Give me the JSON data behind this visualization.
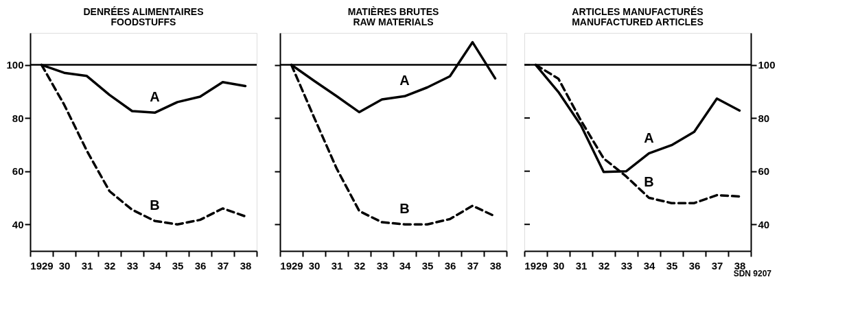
{
  "chart_data": [
    {
      "type": "line",
      "title": "DENRÉES ALIMENTAIRES",
      "subtitle": "FOODSTUFFS",
      "categories": [
        "1929",
        "30",
        "31",
        "32",
        "33",
        "34",
        "35",
        "36",
        "37",
        "38"
      ],
      "series": [
        {
          "name": "A",
          "color": "#000000",
          "line_style": "solid",
          "values": [
            100,
            97,
            95.8,
            88.7,
            82.6,
            82,
            86,
            88,
            93.5,
            92
          ]
        },
        {
          "name": "B",
          "color": "#000000",
          "line_style": "dashed",
          "values": [
            100,
            85,
            67.7,
            52.5,
            45.5,
            41.3,
            40,
            41.7,
            46,
            43
          ]
        }
      ],
      "ylim": [
        30,
        112
      ],
      "yticks": [
        40,
        60,
        80,
        100
      ],
      "grid": false,
      "ref_lines": [
        {
          "axis": "y",
          "value": 100,
          "color": "#000000"
        }
      ]
    },
    {
      "type": "line",
      "title": "MATIÈRES BRUTES",
      "subtitle": "RAW MATERIALS",
      "categories": [
        "1929",
        "30",
        "31",
        "32",
        "33",
        "34",
        "35",
        "36",
        "37",
        "38"
      ],
      "series": [
        {
          "name": "A",
          "color": "#000000",
          "line_style": "solid",
          "values": [
            100,
            94,
            88.2,
            82.2,
            87,
            88.2,
            91.5,
            95.7,
            108.5,
            94.9
          ]
        },
        {
          "name": "B",
          "color": "#000000",
          "line_style": "dashed",
          "values": [
            100,
            80.3,
            61,
            45,
            40.8,
            40,
            40,
            42,
            47,
            43
          ]
        }
      ],
      "ylim": [
        30,
        112
      ],
      "yticks": [
        40,
        60,
        80,
        100
      ],
      "grid": false,
      "tick_labels": "x",
      "ref_lines": [
        {
          "axis": "y",
          "value": 100,
          "color": "#000000"
        }
      ]
    },
    {
      "type": "line",
      "title": "ARTICLES MANUFACTURÉS",
      "subtitle": "MANUFACTURED ARTICLES",
      "categories": [
        "1929",
        "30",
        "31",
        "32",
        "33",
        "34",
        "35",
        "36",
        "37",
        "38"
      ],
      "series": [
        {
          "name": "A",
          "color": "#000000",
          "line_style": "solid",
          "axis": "y2",
          "values": [
            100,
            89.8,
            77.2,
            59.7,
            60,
            66.7,
            69.8,
            74.8,
            87.3,
            82.8
          ]
        },
        {
          "name": "B",
          "color": "#000000",
          "line_style": "dashed",
          "axis": "y2",
          "values": [
            100,
            94.8,
            79,
            64.8,
            58,
            50,
            48,
            48,
            51,
            50.5
          ]
        }
      ],
      "y2lim": [
        30,
        112
      ],
      "y2ticks": [
        40,
        60,
        80,
        100
      ],
      "grid": false,
      "ref_lines": [
        {
          "axis": "y2",
          "value": 100,
          "color": "#000000"
        }
      ],
      "annotations": [
        "SDN 9207"
      ]
    }
  ]
}
